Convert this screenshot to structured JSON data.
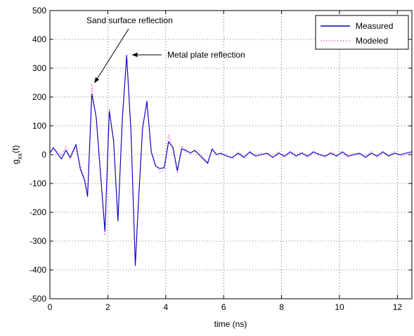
{
  "chart_data": {
    "type": "line",
    "xlabel": "time (ns)",
    "ylabel_main": "g",
    "ylabel_sub": "xx",
    "ylabel_arg": "(t)",
    "xlim": [
      0,
      12.5
    ],
    "ylim": [
      -500,
      500
    ],
    "xticks": [
      0,
      2,
      4,
      6,
      8,
      10,
      12
    ],
    "yticks": [
      -500,
      -400,
      -300,
      -200,
      -100,
      0,
      100,
      200,
      300,
      400,
      500
    ],
    "grid": true,
    "legend_position": "top-right",
    "colors": {
      "measured": "#0000c8",
      "modeled": "#ff66cc"
    },
    "annotations": [
      {
        "text": "Sand surface reflection",
        "points_to": [
          1.45,
          240
        ]
      },
      {
        "text": "Metal plate reflection",
        "points_to": [
          2.75,
          335
        ]
      }
    ],
    "series": [
      {
        "name": "Measured",
        "style": "solid",
        "x": [
          0,
          0.12,
          0.25,
          0.4,
          0.55,
          0.7,
          0.9,
          1.05,
          1.2,
          1.3,
          1.45,
          1.6,
          1.75,
          1.9,
          2.05,
          2.2,
          2.35,
          2.5,
          2.65,
          2.8,
          2.95,
          3.05,
          3.2,
          3.35,
          3.5,
          3.65,
          3.8,
          3.95,
          4.1,
          4.25,
          4.4,
          4.55,
          4.7,
          4.85,
          5.0,
          5.15,
          5.3,
          5.45,
          5.6,
          5.75,
          5.9,
          6.1,
          6.3,
          6.5,
          6.7,
          6.9,
          7.1,
          7.3,
          7.5,
          7.7,
          7.9,
          8.1,
          8.3,
          8.5,
          8.7,
          8.9,
          9.1,
          9.3,
          9.5,
          9.7,
          9.9,
          10.1,
          10.3,
          10.5,
          10.7,
          10.9,
          11.1,
          11.3,
          11.5,
          11.7,
          11.9,
          12.1,
          12.3,
          12.5
        ],
        "y": [
          5,
          25,
          5,
          -15,
          15,
          -10,
          35,
          -50,
          -90,
          -145,
          210,
          130,
          -70,
          -265,
          150,
          50,
          -230,
          120,
          345,
          80,
          -385,
          -180,
          90,
          185,
          10,
          -40,
          -48,
          -45,
          45,
          25,
          -55,
          20,
          15,
          5,
          15,
          0,
          -15,
          -30,
          20,
          0,
          5,
          -5,
          -10,
          5,
          -10,
          10,
          -5,
          0,
          5,
          -10,
          5,
          -5,
          10,
          -5,
          5,
          -5,
          10,
          0,
          -5,
          5,
          -5,
          10,
          -5,
          0,
          5,
          -10,
          5,
          -5,
          10,
          -5,
          5,
          0,
          5,
          10
        ]
      },
      {
        "name": "Modeled",
        "style": "dotted",
        "x": [
          0,
          0.12,
          0.25,
          0.4,
          0.55,
          0.7,
          0.9,
          1.05,
          1.2,
          1.3,
          1.45,
          1.6,
          1.75,
          1.9,
          2.05,
          2.2,
          2.35,
          2.5,
          2.65,
          2.8,
          2.95,
          3.05,
          3.2,
          3.35,
          3.5,
          3.65,
          3.8,
          3.95,
          4.1,
          4.25,
          4.4,
          4.55,
          4.7,
          4.85,
          5.0,
          5.15,
          5.3,
          5.45,
          5.6,
          5.75,
          5.9,
          6.1,
          6.3,
          6.5,
          6.7,
          6.9,
          7.1,
          7.3,
          7.5,
          7.7,
          7.9,
          8.1,
          8.3,
          8.5,
          8.7,
          8.9,
          9.1,
          9.3,
          9.5,
          9.7,
          9.9,
          10.1,
          10.3,
          10.5,
          10.7,
          10.9,
          11.1,
          11.3,
          11.5,
          11.7,
          11.9,
          12.1,
          12.3,
          12.5
        ],
        "y": [
          10,
          20,
          10,
          -5,
          30,
          -15,
          25,
          -40,
          -80,
          -130,
          245,
          120,
          -60,
          -280,
          160,
          40,
          -220,
          130,
          335,
          70,
          -375,
          -170,
          100,
          175,
          15,
          -35,
          -60,
          -50,
          70,
          15,
          -65,
          30,
          10,
          10,
          10,
          5,
          -10,
          -25,
          15,
          5,
          0,
          0,
          -15,
          10,
          -5,
          5,
          0,
          5,
          0,
          -5,
          10,
          -10,
          5,
          0,
          10,
          -10,
          5,
          5,
          -10,
          10,
          0,
          5,
          -10,
          5,
          0,
          -5,
          10,
          -10,
          5,
          0,
          10,
          -5,
          0,
          5
        ]
      }
    ]
  }
}
